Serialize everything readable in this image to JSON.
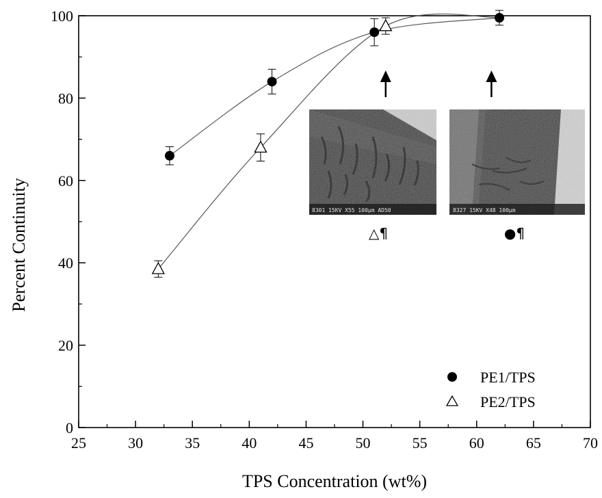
{
  "chart_data": {
    "type": "scatter",
    "title": "",
    "xlabel": "TPS Concentration  (wt%)",
    "ylabel": "Percent Continuity",
    "xlim": [
      25,
      70
    ],
    "ylim": [
      0,
      100
    ],
    "xticks": [
      25,
      30,
      35,
      40,
      45,
      50,
      55,
      60,
      65,
      70
    ],
    "yticks": [
      0,
      20,
      40,
      60,
      80,
      100
    ],
    "grid": false,
    "legend_position": "bottom-right",
    "series": [
      {
        "name": "PE1/TPS",
        "marker": "filled-circle",
        "color": "#000000",
        "points": [
          {
            "x": 33,
            "y": 66,
            "err": 2.2
          },
          {
            "x": 42,
            "y": 84,
            "err": 3.0
          },
          {
            "x": 51,
            "y": 96,
            "err": 3.3
          },
          {
            "x": 62,
            "y": 99.5,
            "err": 1.8
          }
        ]
      },
      {
        "name": "PE2/TPS",
        "marker": "open-triangle",
        "color": "#000000",
        "points": [
          {
            "x": 32,
            "y": 38.5,
            "err": 2.0
          },
          {
            "x": 41,
            "y": 68,
            "err": 3.3
          },
          {
            "x": 52,
            "y": 97.5,
            "err": 2.0
          }
        ]
      }
    ],
    "insets": [
      {
        "label_symbol": "△¶",
        "arrow_x": 52,
        "micro_text": "8301 15KV  X55 100μm AD50"
      },
      {
        "label_symbol": "●¶",
        "arrow_x": 61.3,
        "micro_text": "8327 15KV  X48 100μm"
      }
    ]
  }
}
